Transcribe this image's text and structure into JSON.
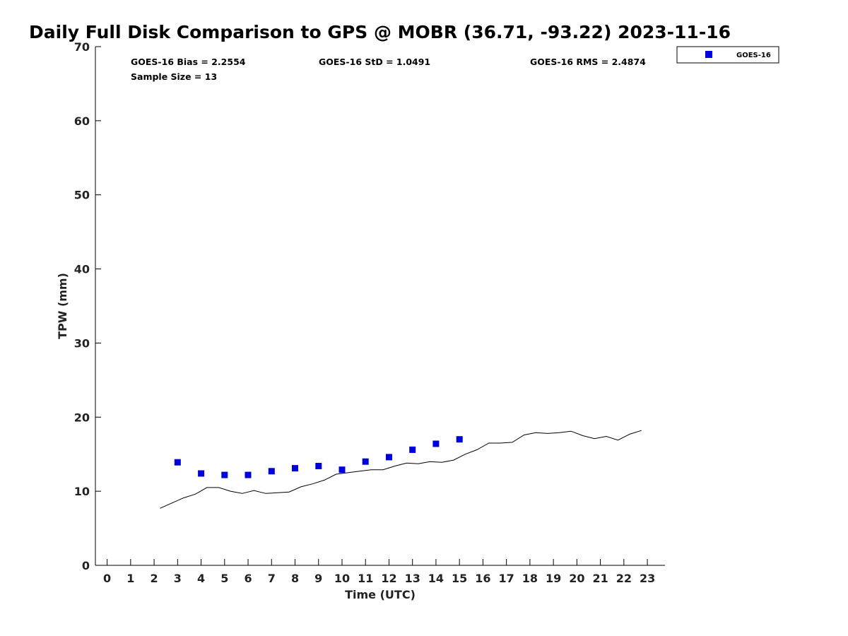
{
  "chart_data": {
    "type": "scatter",
    "title": "Daily Full Disk Comparison to GPS @ MOBR (36.71, -93.22) 2023-11-16",
    "xlabel": "Time (UTC)",
    "ylabel": "TPW (mm)",
    "xlim": [
      -0.5,
      23.75
    ],
    "ylim": [
      0,
      70
    ],
    "x_ticks": [
      0,
      1,
      2,
      3,
      4,
      5,
      6,
      7,
      8,
      9,
      10,
      11,
      12,
      13,
      14,
      15,
      16,
      17,
      18,
      19,
      20,
      21,
      22,
      23
    ],
    "y_ticks": [
      0,
      10,
      20,
      30,
      40,
      50,
      60,
      70
    ],
    "grid": false,
    "legend_position": "top-right",
    "stats": {
      "bias": "GOES-16 Bias = 2.2554",
      "std": "GOES-16 StD = 1.0491",
      "rms": "GOES-16 RMS = 2.4874",
      "sample_size": "Sample Size = 13"
    },
    "series": [
      {
        "name": "GOES-16",
        "type": "scatter",
        "marker": "square",
        "color": "#0000dd",
        "x": [
          3,
          4,
          5,
          6,
          7,
          8,
          9,
          10,
          11,
          12,
          13,
          14,
          15
        ],
        "y": [
          13.9,
          12.4,
          12.2,
          12.2,
          12.7,
          13.1,
          13.4,
          12.9,
          14.0,
          14.6,
          15.6,
          16.4,
          17.0
        ]
      },
      {
        "type": "line",
        "color": "#000000",
        "x": [
          2.25,
          2.75,
          3.25,
          3.75,
          4.25,
          4.75,
          5.25,
          5.75,
          6.25,
          6.75,
          7.25,
          7.75,
          8.25,
          8.75,
          9.25,
          9.75,
          10.25,
          10.75,
          11.25,
          11.75,
          12.25,
          12.75,
          13.25,
          13.75,
          14.25,
          14.75,
          15.25,
          15.75,
          16.25,
          16.75,
          17.25,
          17.75,
          18.25,
          18.75,
          19.25,
          19.75,
          20.25,
          20.75,
          21.25,
          21.75,
          22.25,
          22.75
        ],
        "y": [
          7.7,
          8.4,
          9.1,
          9.6,
          10.5,
          10.5,
          10.0,
          9.7,
          10.1,
          9.7,
          9.8,
          9.9,
          10.6,
          11.0,
          11.5,
          12.3,
          12.5,
          12.7,
          12.9,
          12.9,
          13.4,
          13.8,
          13.7,
          14.0,
          13.9,
          14.2,
          15.0,
          15.6,
          16.5,
          16.5,
          16.6,
          17.6,
          17.9,
          17.8,
          17.9,
          18.1,
          17.5,
          17.1,
          17.4,
          16.9,
          17.7,
          18.2
        ]
      }
    ]
  }
}
